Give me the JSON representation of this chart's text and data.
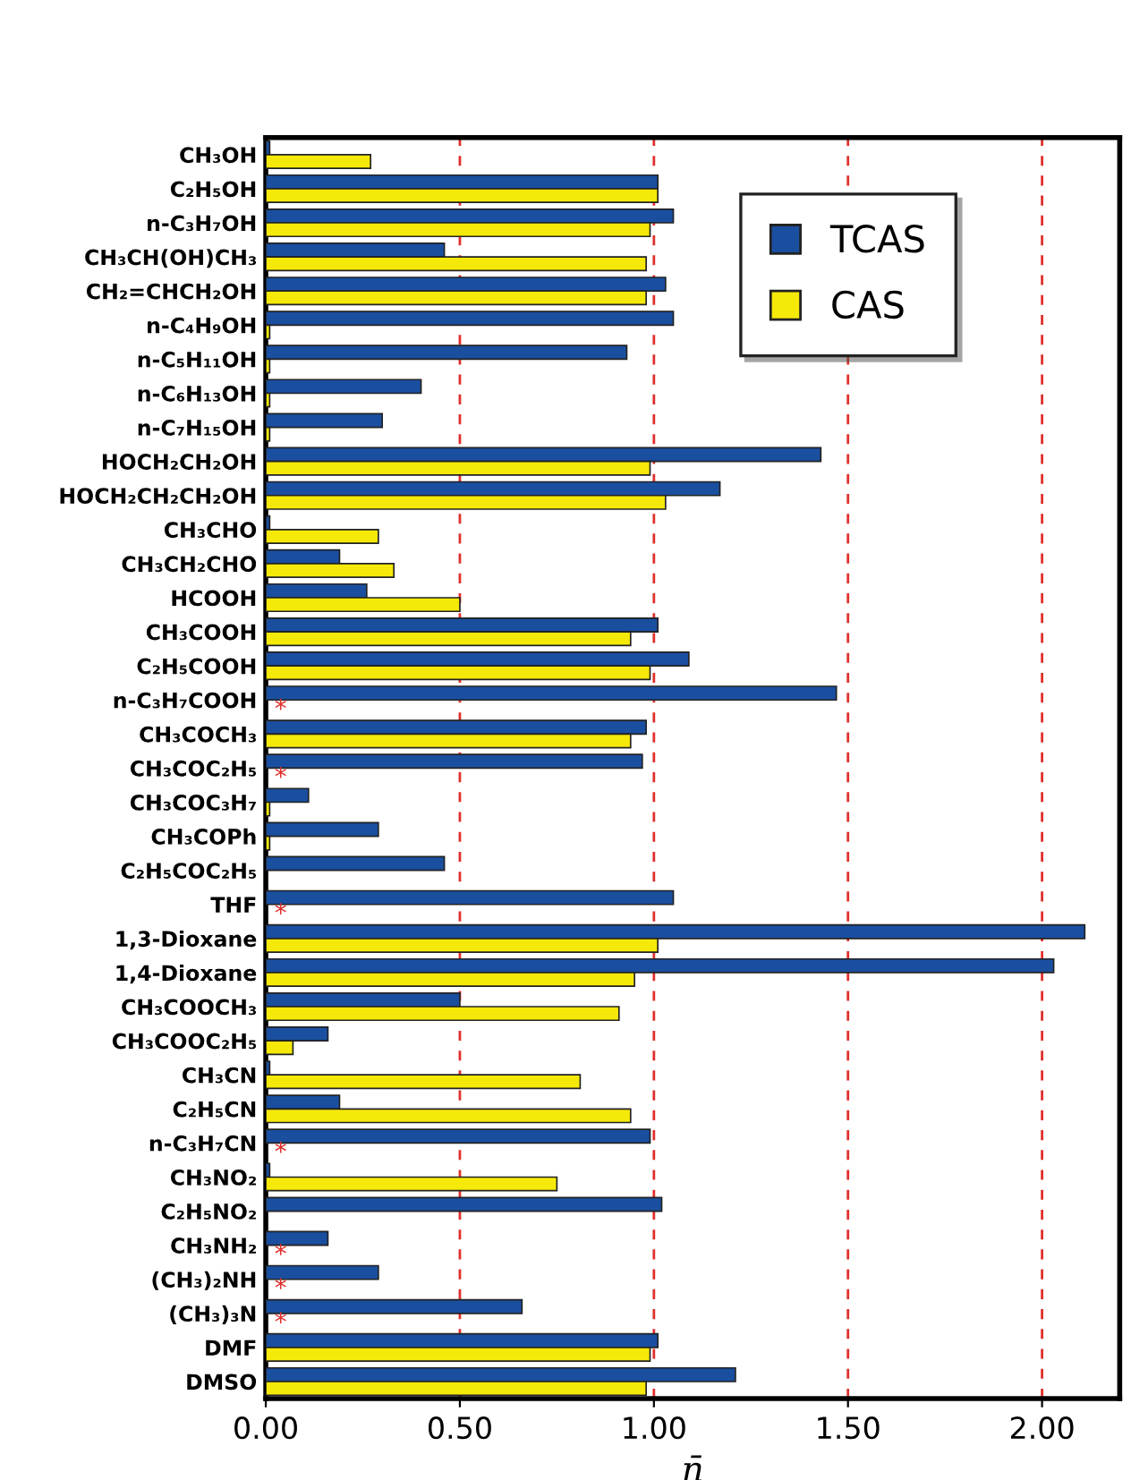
{
  "chart_data": {
    "type": "bar",
    "orientation": "horizontal",
    "xlabel": "n̄",
    "categories": [
      "CH₃OH",
      "C₂H₅OH",
      "n-C₃H₇OH",
      "CH₃CH(OH)CH₃",
      "CH₂=CHCH₂OH",
      "n-C₄H₉OH",
      "n-C₅H₁₁OH",
      "n-C₆H₁₃OH",
      "n-C₇H₁₅OH",
      "HOCH₂CH₂OH",
      "HOCH₂CH₂CH₂OH",
      "CH₃CHO",
      "CH₃CH₂CHO",
      "HCOOH",
      "CH₃COOH",
      "C₂H₅COOH",
      "n-C₃H₇COOH",
      "CH₃COCH₃",
      "CH₃COC₂H₅",
      "CH₃COC₃H₇",
      "CH₃COPh",
      "C₂H₅COC₂H₅",
      "THF",
      "1,3-Dioxane",
      "1,4-Dioxane",
      "CH₃COOCH₃",
      "CH₃COOC₂H₅",
      "CH₃CN",
      "C₂H₅CN",
      "n-C₃H₇CN",
      "CH₃NO₂",
      "C₂H₅NO₂",
      "CH₃NH₂",
      "(CH₃)₂NH",
      "(CH₃)₃N",
      "DMF",
      "DMSO"
    ],
    "series": [
      {
        "name": "TCAS",
        "color": "#1a4fa0",
        "values": [
          0.01,
          1.01,
          1.05,
          0.46,
          1.03,
          1.05,
          0.93,
          0.4,
          0.3,
          1.43,
          1.17,
          0.01,
          0.19,
          0.26,
          1.01,
          1.09,
          1.47,
          0.98,
          0.97,
          0.11,
          0.29,
          0.46,
          1.05,
          2.11,
          2.03,
          0.5,
          0.16,
          0.01,
          0.19,
          0.99,
          0.01,
          1.02,
          0.16,
          0.29,
          0.66,
          1.01,
          1.21
        ]
      },
      {
        "name": "CAS",
        "color": "#f5e90a",
        "values": [
          0.27,
          1.01,
          0.99,
          0.98,
          0.98,
          0.01,
          0.01,
          0.01,
          0.01,
          0.99,
          1.03,
          0.29,
          0.33,
          0.5,
          0.94,
          0.99,
          null,
          0.94,
          null,
          0.01,
          0.01,
          null,
          null,
          1.01,
          0.95,
          0.91,
          0.07,
          0.81,
          0.94,
          null,
          0.75,
          null,
          null,
          null,
          null,
          0.99,
          0.98
        ]
      }
    ],
    "xlim": [
      0,
      2.2
    ],
    "xticks": [
      {
        "value": 0,
        "label": "0.00"
      },
      {
        "value": 0.5,
        "label": "0.50"
      },
      {
        "value": 1,
        "label": "1.00"
      },
      {
        "value": 1.5,
        "label": "1.50"
      },
      {
        "value": 2,
        "label": "2.00"
      }
    ],
    "grid": "x",
    "legend": "top right",
    "annotations": [
      {
        "text": "*",
        "y": "n-C₃H₇COOH"
      },
      {
        "text": "*",
        "y": "CH₃COC₂H₅"
      },
      {
        "text": "*",
        "y": "THF"
      },
      {
        "text": "*",
        "y": "n-C₃H₇CN"
      },
      {
        "text": "*",
        "y": "CH₃NH₂"
      },
      {
        "text": "*",
        "y": "(CH₃)₂NH"
      },
      {
        "text": "*",
        "y": "(CH₃)₃N"
      }
    ]
  }
}
